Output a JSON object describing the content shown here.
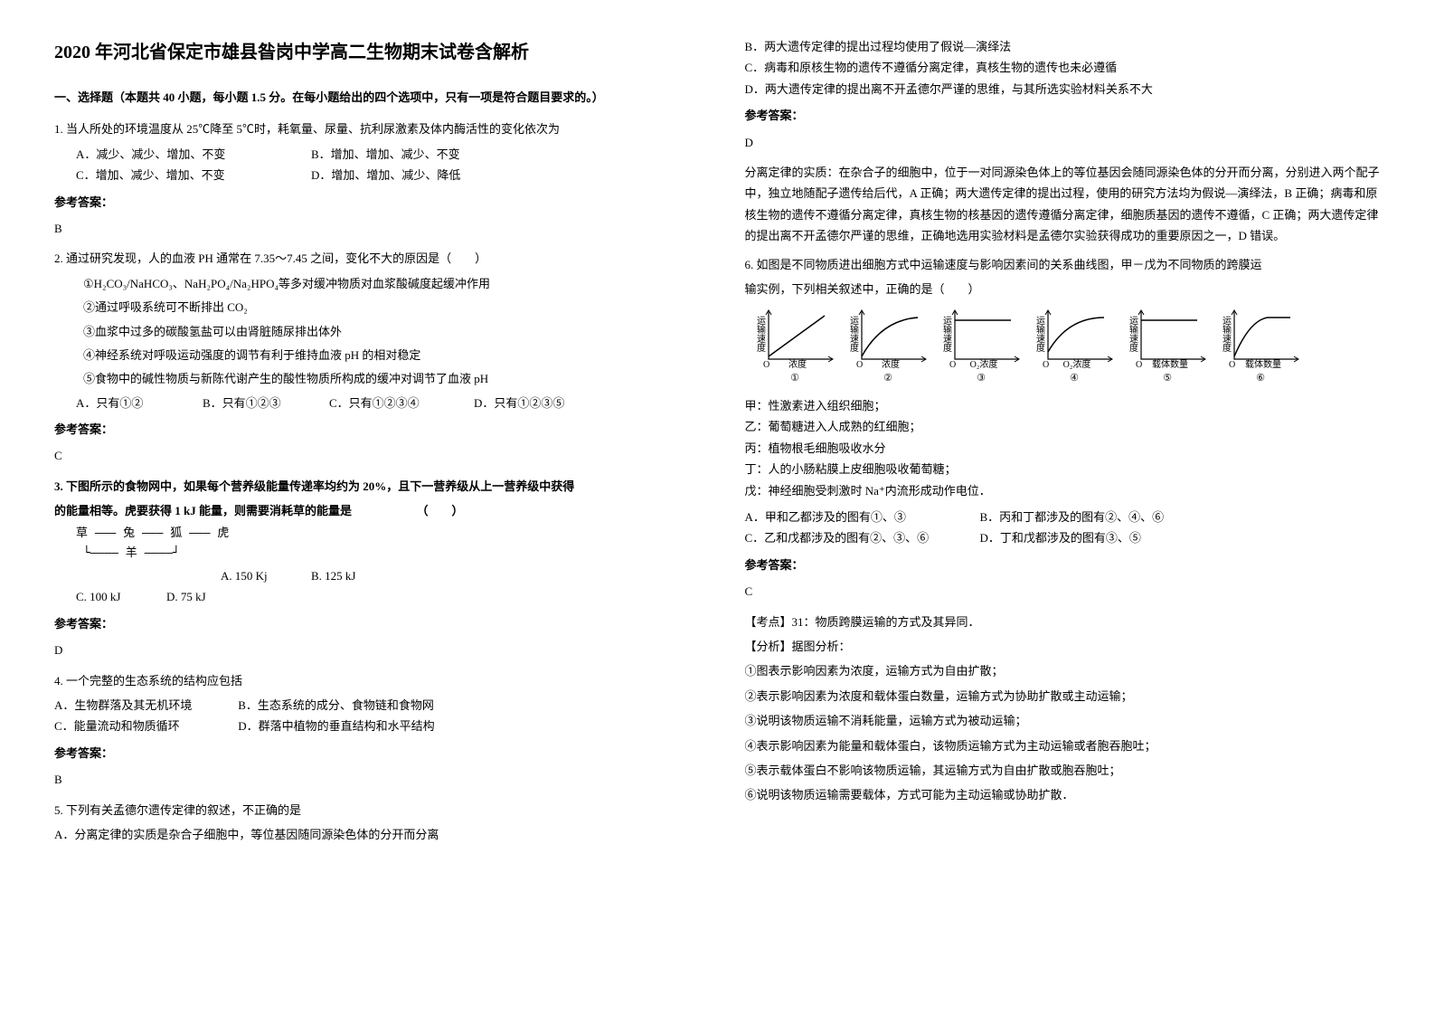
{
  "title": "2020 年河北省保定市雄县昝岗中学高二生物期末试卷含解析",
  "section1": "一、选择题（本题共 40 小题，每小题 1.5 分。在每小题给出的四个选项中，只有一项是符合题目要求的。）",
  "ans_label": "参考答案：",
  "q1": {
    "text": "1. 当人所处的环境温度从 25℃降至 5℃时，耗氧量、尿量、抗利尿激素及体内酶活性的变化依次为",
    "A": "A．减少、减少、增加、不变",
    "B": "B．增加、增加、减少、不变",
    "C": "C．增加、减少、增加、不变",
    "D": "D．增加、增加、减少、降低",
    "ans": "B"
  },
  "q2": {
    "text": "2. 通过研究发现，人的血液 PH 通常在 7.35～7.45 之间，变化不大的原因是（　　）",
    "s1": "①H₂CO₃/NaHCO₃、NaH₂PO₄/Na₂HPO₄等多对缓冲物质对血浆酸碱度起缓冲作用",
    "s2": "②通过呼吸系统可不断排出 CO₂",
    "s3": "③血浆中过多的碳酸氢盐可以由肾脏随尿排出体外",
    "s4": "④神经系统对呼吸运动强度的调节有利于维持血液 pH 的相对稳定",
    "s5": "⑤食物中的碱性物质与新陈代谢产生的酸性物质所构成的缓冲对调节了血液 pH",
    "A": "A．只有①②",
    "B": "B．只有①②③",
    "C": "C．只有①②③④",
    "D": "D．只有①②③⑤",
    "ans": "C"
  },
  "q3": {
    "text1": "3. 下图所示的食物网中，如果每个营养级能量传递率均约为 20%，且下一营养级从上一营养级中获得",
    "text2": "的能量相等。虎要获得 1 kJ 能量，则需要消耗草的能量是　　　　　　（　　）",
    "diagram1": "草 ——— 兔 ——— 狐 ——— 虎",
    "diagram2": " └———— 羊 ————┘",
    "A": "A. 150 Kj",
    "B": "B. 125 kJ",
    "C": "C. 100 kJ",
    "D": "D. 75 kJ",
    "ans": "D"
  },
  "q4": {
    "text": "4. 一个完整的生态系统的结构应包括",
    "A": "A．生物群落及其无机环境",
    "B": "B．生态系统的成分、食物链和食物网",
    "C": "C．能量流动和物质循环",
    "D": "D．群落中植物的垂直结构和水平结构",
    "ans": "B"
  },
  "q5": {
    "text": "5. 下列有关孟德尔遗传定律的叙述，不正确的是",
    "A": "A．分离定律的实质是杂合子细胞中，等位基因随同源染色体的分开而分离",
    "B": "B．两大遗传定律的提出过程均使用了假说—演绎法",
    "C": "C．病毒和原核生物的遗传不遵循分离定律，真核生物的遗传也未必遵循",
    "D": "D．两大遗传定律的提出离不开孟德尔严谨的思维，与其所选实验材料关系不大",
    "ans": "D",
    "explain": "分离定律的实质：在杂合子的细胞中，位于一对同源染色体上的等位基因会随同源染色体的分开而分离，分别进入两个配子中，独立地随配子遗传给后代，A 正确；两大遗传定律的提出过程，使用的研究方法均为假说—演绎法，B 正确；病毒和原核生物的遗传不遵循分离定律，真核生物的核基因的遗传遵循分离定律，细胞质基因的遗传不遵循，C 正确；两大遗传定律的提出离不开孟德尔严谨的思维，正确地选用实验材料是孟德尔实验获得成功的重要原因之一，D 错误。"
  },
  "q6": {
    "text1": "6. 如图是不同物质进出细胞方式中运输速度与影响因素间的关系曲线图，甲－戊为不同物质的跨膜运",
    "text2": "输实例，下列相关叙述中，正确的是（　　）",
    "ylabel": "运输速度",
    "labels": [
      "①",
      "②",
      "③",
      "④",
      "⑤",
      "⑥"
    ],
    "xlabels": [
      "浓度",
      "浓度",
      "O₂浓度",
      "O₂浓度",
      "载体数量",
      "载体数量"
    ],
    "jia": "甲：性激素进入组织细胞；",
    "yi": "乙：葡萄糖进入人成熟的红细胞；",
    "bing": "丙：植物根毛细胞吸收水分",
    "ding": "丁：人的小肠粘膜上皮细胞吸收葡萄糖；",
    "wu": "戊：神经细胞受刺激时 Na⁺内流形成动作电位．",
    "A": "A．甲和乙都涉及的图有①、③",
    "B": "B．丙和丁都涉及的图有②、④、⑥",
    "C": "C．乙和戊都涉及的图有②、③、⑥",
    "D": "D．丁和戊都涉及的图有③、⑤",
    "ans": "C",
    "kaodian": "【考点】31：物质跨膜运输的方式及其异同．",
    "fenxi": "【分析】据图分析：",
    "e1": "①图表示影响因素为浓度，运输方式为自由扩散；",
    "e2": "②表示影响因素为浓度和载体蛋白数量，运输方式为协助扩散或主动运输；",
    "e3": "③说明该物质运输不消耗能量，运输方式为被动运输；",
    "e4": "④表示影响因素为能量和载体蛋白，该物质运输方式为主动运输或者胞吞胞吐；",
    "e5": "⑤表示载体蛋白不影响该物质运输，其运输方式为自由扩散或胞吞胞吐；",
    "e6": "⑥说明该物质运输需要载体，方式可能为主动运输或协助扩散．"
  },
  "chart_style": {
    "width": 95,
    "height": 70,
    "axis_color": "#000",
    "axis_width": 1.2,
    "curve_color": "#000",
    "curve_width": 1.5,
    "font_size": 10
  }
}
